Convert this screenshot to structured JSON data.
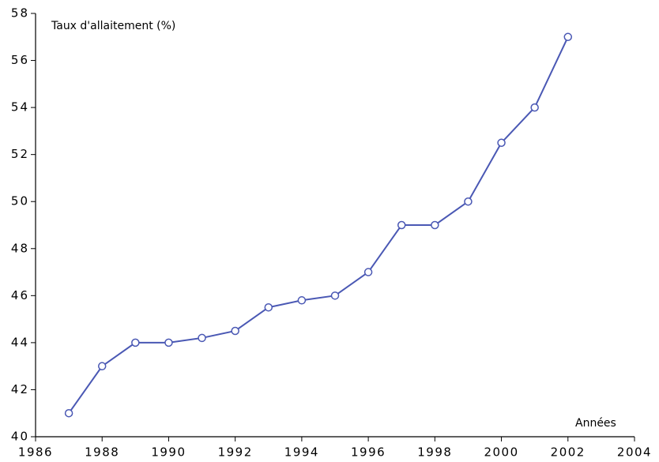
{
  "chart_data": {
    "type": "line",
    "ylabel": "Taux d'allaitement (%)",
    "xlabel": "Années",
    "x": [
      1987,
      1988,
      1989,
      1990,
      1991,
      1992,
      1993,
      1994,
      1995,
      1996,
      1997,
      1998,
      1999,
      2000,
      2001,
      2002
    ],
    "values": [
      41,
      43,
      44,
      44,
      44.2,
      44.5,
      45.5,
      45.8,
      46,
      47,
      49,
      49,
      50,
      52.5,
      54,
      57
    ],
    "color": "#4a58b4",
    "xlim": [
      1986,
      2004
    ],
    "xticks": [
      1986,
      1988,
      1990,
      1992,
      1994,
      1996,
      1998,
      2000,
      2002,
      2004
    ],
    "ylim": [
      40,
      58
    ],
    "yticks": [
      40,
      42,
      44,
      46,
      48,
      50,
      52,
      54,
      56,
      58
    ]
  }
}
